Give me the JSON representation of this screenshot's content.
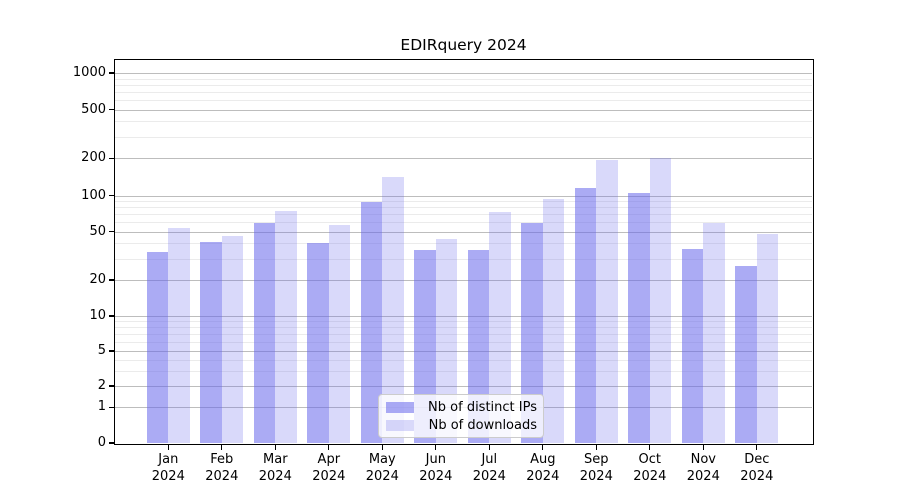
{
  "title": "EDIRquery 2024",
  "chart_data": {
    "type": "bar",
    "title": "EDIRquery 2024",
    "categories": [
      "Jan",
      "Feb",
      "Mar",
      "Apr",
      "May",
      "Jun",
      "Jul",
      "Aug",
      "Sep",
      "Oct",
      "Nov",
      "Dec"
    ],
    "x_year": "2024",
    "series": [
      {
        "name": "Nb of distinct IPs",
        "color": "rgba(102,102,235,0.55)",
        "color_hex_on_white": "#a9a9f3",
        "values": [
          34,
          41,
          59,
          40,
          88,
          35,
          35,
          59,
          116,
          104,
          36,
          26
        ]
      },
      {
        "name": "Nb of downloads",
        "color": "rgba(102,102,235,0.25)",
        "color_hex_on_white": "#d9d9fa",
        "values": [
          53,
          46,
          74,
          57,
          140,
          43,
          73,
          93,
          193,
          200,
          59,
          48
        ]
      }
    ],
    "yticks": [
      0,
      1,
      2,
      5,
      10,
      20,
      50,
      100,
      200,
      500,
      1000
    ],
    "yscale": "symlog",
    "ylim": [
      0,
      1300
    ],
    "xlabel": "",
    "ylabel": "",
    "grid": "major+minor horizontal",
    "legend_position": "lower center"
  }
}
